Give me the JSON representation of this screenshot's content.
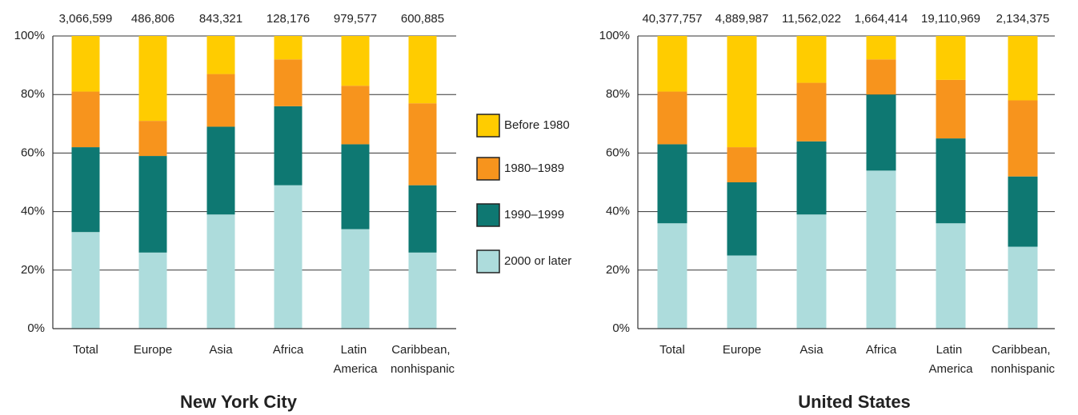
{
  "chart_data": [
    {
      "type": "stacked_bar",
      "title": "New York City",
      "categories": [
        "Total",
        "Europe",
        "Asia",
        "Africa",
        "Latin America",
        "Caribbean, nonhispanic"
      ],
      "totals": {
        "values": [
          3066599,
          486806,
          843321,
          128176,
          979577,
          600885
        ],
        "value_labels": [
          "3,066,599",
          "486,806",
          "843,321",
          "128,176",
          "979,577",
          "600,885"
        ]
      },
      "series": [
        {
          "name": "2000 or later",
          "color": "#addcdc",
          "values": [
            33,
            26,
            39,
            49,
            34,
            26
          ]
        },
        {
          "name": "1990–1999",
          "color": "#0e7872",
          "values": [
            29,
            33,
            30,
            27,
            29,
            23
          ]
        },
        {
          "name": "1980–1989",
          "color": "#f7941d",
          "values": [
            19,
            12,
            18,
            16,
            20,
            28
          ]
        },
        {
          "name": "Before 1980",
          "color": "#ffcc00",
          "values": [
            19,
            29,
            13,
            8,
            17,
            23
          ]
        }
      ],
      "ylim": [
        0,
        100
      ],
      "yticks": [
        {
          "value": 0,
          "label": "0%"
        },
        {
          "value": 20,
          "label": "20%"
        },
        {
          "value": 40,
          "label": "40%"
        },
        {
          "value": 60,
          "label": "60%"
        },
        {
          "value": 80,
          "label": "80%"
        },
        {
          "value": 100,
          "label": "100%"
        }
      ],
      "grid": true
    },
    {
      "type": "stacked_bar",
      "title": "United States",
      "categories": [
        "Total",
        "Europe",
        "Asia",
        "Africa",
        "Latin America",
        "Caribbean, nonhispanic"
      ],
      "totals": {
        "values": [
          40377757,
          4889987,
          11562022,
          1664414,
          19110969,
          2134375
        ],
        "value_labels": [
          "40,377,757",
          "4,889,987",
          "11,562,022",
          "1,664,414",
          "19,110,969",
          "2,134,375"
        ]
      },
      "series": [
        {
          "values": [
            36,
            25,
            39,
            54,
            36,
            28
          ]
        },
        {
          "values": [
            27,
            25,
            25,
            26,
            29,
            24
          ]
        },
        {
          "values": [
            18,
            12,
            20,
            12,
            20,
            26
          ]
        },
        {
          "values": [
            19,
            38,
            16,
            8,
            15,
            22
          ]
        }
      ],
      "ylim": [
        0,
        100
      ],
      "yticks": [
        {
          "value": 0,
          "label": "0%"
        },
        {
          "value": 20,
          "label": "20%"
        },
        {
          "value": 40,
          "label": "40%"
        },
        {
          "value": 60,
          "label": "60%"
        },
        {
          "value": 80,
          "label": "80%"
        },
        {
          "value": 100,
          "label": "100%"
        }
      ],
      "grid": true
    }
  ]
}
